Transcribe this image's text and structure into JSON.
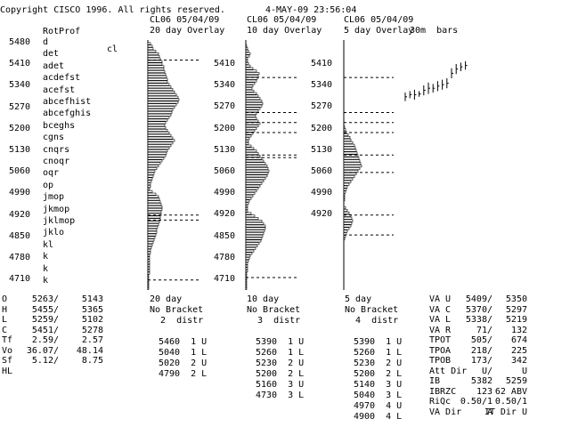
{
  "header": {
    "copyright": "Copyright CISCO 1996. All rights reserved.",
    "datetime": "4-MAY-09 23:56:04"
  },
  "left_panel": {
    "title": "RotProf",
    "prices": [
      "5480",
      "5410",
      "5340",
      "5270",
      "5200",
      "5130",
      "5060",
      "4990",
      "4920",
      "4850",
      "4780",
      "4710"
    ],
    "rot_letters": [
      "d",
      "det",
      "adet",
      "acdefst",
      "acefst",
      "abcefhist",
      "abcefghis",
      "bceghs",
      "cgns",
      "cnqrs",
      "cnoqr",
      "oqr",
      "op",
      "jmop",
      "jkmop",
      "jklmop",
      "jklo",
      "kl",
      "k",
      "k",
      "k"
    ],
    "cl_label": "cl"
  },
  "panel_20": {
    "header": "CL06 05/04/09",
    "title": "20 day Overlay",
    "lengths": [
      0,
      3,
      5,
      6,
      9,
      12,
      13,
      14,
      16,
      16,
      18,
      18,
      19,
      20,
      21,
      22,
      22,
      24,
      26,
      28,
      30,
      32,
      34,
      35,
      34,
      32,
      30,
      28,
      27,
      26,
      24,
      22,
      20,
      19,
      20,
      22,
      24,
      26,
      28,
      30,
      28,
      26,
      24,
      22,
      21,
      20,
      18,
      16,
      14,
      12,
      10,
      8,
      7,
      6,
      5,
      4,
      3,
      3,
      2,
      5,
      9,
      12,
      13,
      14,
      15,
      16,
      16,
      15,
      15,
      14,
      14,
      13,
      12,
      11,
      10,
      10,
      9,
      8,
      7,
      6,
      5,
      4,
      3,
      3,
      2,
      2,
      2,
      2,
      2,
      2,
      2,
      2,
      1,
      1,
      1,
      1,
      1,
      1
    ],
    "dashes": [
      0.08,
      0.7,
      0.72,
      0.96
    ],
    "footer": [
      "20 day",
      "No Bracket",
      "  2  distr"
    ],
    "table": [
      "5460  1 U",
      "5040  1 L",
      "5020  2 U",
      "4790  2 L"
    ]
  },
  "panel_10": {
    "header": "CL06 05/04/09",
    "title": "10 day Overlay",
    "prices": [
      "5410",
      "5340",
      "5270",
      "5200",
      "5130",
      "5060",
      "4990",
      "4920",
      "4850",
      "4780",
      "4710"
    ],
    "lengths": [
      0,
      0,
      1,
      2,
      3,
      5,
      4,
      2,
      2,
      3,
      5,
      8,
      12,
      15,
      14,
      13,
      12,
      10,
      8,
      7,
      9,
      12,
      14,
      16,
      18,
      19,
      18,
      16,
      14,
      12,
      11,
      12,
      14,
      16,
      14,
      12,
      10,
      8,
      6,
      4,
      3,
      3,
      6,
      9,
      12,
      14,
      16,
      18,
      20,
      22,
      24,
      25,
      26,
      25,
      24,
      22,
      20,
      18,
      16,
      14,
      12,
      10,
      8,
      6,
      4,
      3,
      2,
      2,
      2,
      6,
      10,
      14,
      18,
      20,
      22,
      22,
      21,
      20,
      19,
      18,
      17,
      15,
      13,
      11,
      9,
      7,
      5,
      4,
      3,
      2,
      2,
      2,
      2,
      1,
      1,
      1,
      1,
      1,
      1,
      1
    ],
    "dashes": [
      0.15,
      0.29,
      0.33,
      0.37,
      0.46,
      0.47,
      0.95
    ],
    "footer": [
      "10 day",
      "No Bracket",
      "  3  distr"
    ],
    "table": [
      "5390  1 U",
      "5260  1 L",
      "5230  2 U",
      "5200  2 L",
      "5160  3 U",
      "4730  3 L"
    ]
  },
  "panel_5": {
    "header": "CL06 05/04/09",
    "title": "5 day Overlay",
    "bars_label": "30m  bars",
    "prices": [
      "5410",
      "5340",
      "5270",
      "5200",
      "5130",
      "5060",
      "4990",
      "4920"
    ],
    "lengths": [
      0,
      0,
      0,
      0,
      0,
      0,
      0,
      0,
      0,
      0,
      0,
      0,
      0,
      0,
      0,
      0,
      0,
      0,
      0,
      0,
      0,
      0,
      0,
      0,
      0,
      0,
      0,
      0,
      0,
      0,
      0,
      0,
      0,
      1,
      2,
      3,
      5,
      7,
      8,
      10,
      12,
      13,
      14,
      15,
      16,
      17,
      18,
      19,
      20,
      18,
      16,
      14,
      12,
      10,
      8,
      6,
      4,
      3,
      2,
      1,
      1,
      1,
      0,
      0,
      2,
      4,
      6,
      8,
      9,
      10,
      9,
      8,
      6,
      4,
      3,
      2,
      1,
      0,
      0,
      0,
      0,
      0,
      0,
      0,
      0,
      0,
      0,
      0,
      0,
      0,
      0,
      0,
      0,
      0,
      0,
      0
    ],
    "dashes": [
      0.15,
      0.29,
      0.33,
      0.37,
      0.46,
      0.53,
      0.7,
      0.78
    ],
    "footer": [
      "5 day",
      "No Bracket",
      "  4  distr"
    ],
    "table": [
      "5390  1 U",
      "5260  1 L",
      "5230  2 U",
      "5200  2 L",
      "5140  3 U",
      "5040  3 L",
      "4970  4 U",
      "4900  4 L"
    ]
  },
  "bars": [
    [
      0.18,
      0.3
    ],
    [
      0.22,
      0.32
    ],
    [
      0.2,
      0.34
    ],
    [
      0.24,
      0.32
    ],
    [
      0.26,
      0.4
    ],
    [
      0.28,
      0.44
    ],
    [
      0.3,
      0.42
    ],
    [
      0.32,
      0.46
    ],
    [
      0.34,
      0.48
    ],
    [
      0.36,
      0.5
    ],
    [
      0.5,
      0.64
    ],
    [
      0.56,
      0.7
    ],
    [
      0.6,
      0.72
    ],
    [
      0.62,
      0.74
    ]
  ],
  "stats_left": {
    "rows": [
      {
        "label": "O",
        "v1": "5263/",
        "v2": "5143"
      },
      {
        "label": "H",
        "v1": "5455/",
        "v2": "5365"
      },
      {
        "label": "L",
        "v1": "5259/",
        "v2": "5102"
      },
      {
        "label": "C",
        "v1": "5451/",
        "v2": "5278"
      },
      {
        "label": "Tf",
        "v1": "2.59/",
        "v2": "2.57"
      },
      {
        "label": "Vo",
        "v1": "36.07/",
        "v2": "48.14"
      },
      {
        "label": "Sf",
        "v1": "5.12/",
        "v2": "8.75"
      },
      {
        "label": "HL",
        "v1": "",
        "v2": ""
      }
    ]
  },
  "stats_right": {
    "rows": [
      {
        "label": "VA U",
        "v1": "5409/",
        "v2": "5350"
      },
      {
        "label": "VA C",
        "v1": "5370/",
        "v2": "5297"
      },
      {
        "label": "VA L",
        "v1": "5338/",
        "v2": "5219"
      },
      {
        "label": "VA R",
        "v1": "71/",
        "v2": "132"
      },
      {
        "label": "TPOT",
        "v1": "505/",
        "v2": "674"
      },
      {
        "label": "TPOA",
        "v1": "218/",
        "v2": "225"
      },
      {
        "label": "TPOB",
        "v1": "173/",
        "v2": "342"
      },
      {
        "label": "Att Dir",
        "v1": "U/",
        "v2": "U"
      },
      {
        "label": "IB",
        "v1": "5382",
        "v2": "5259"
      },
      {
        "label": "IBRZC",
        "v1": "123",
        "v2": "62 ABV"
      },
      {
        "label": "RiQc",
        "v1": "0.50/1",
        "v2": "0.50/1"
      },
      {
        "label": "VA Dir",
        "v1": "A",
        "v2": "IT Dir U"
      }
    ]
  }
}
